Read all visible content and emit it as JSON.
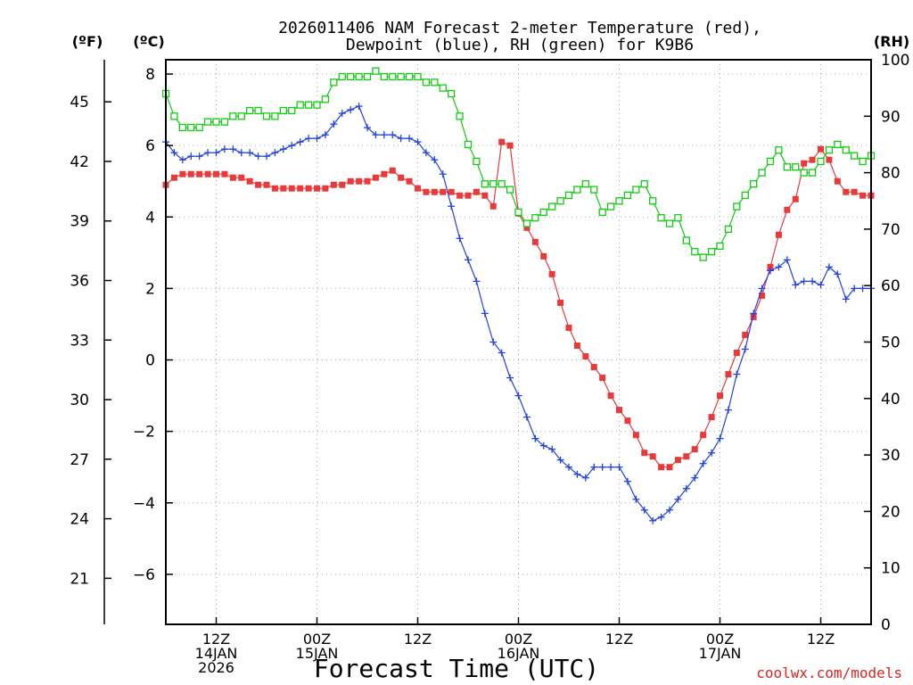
{
  "colors": {
    "temp": "#e83a3a",
    "dew": "#2244dd",
    "rh": "#11cc11",
    "grid": "#aaaaaa",
    "credit": "#dd2222"
  },
  "chart_data": {
    "type": "line",
    "title_line1": "2026011406 NAM Forecast 2-meter Temperature (red),",
    "title_line2": "Dewpoint (blue), RH (green) for K9B6",
    "xlabel": "Forecast Time (UTC)",
    "credit": "coolwx.com/models",
    "unit_f": "(ºF)",
    "unit_c": "(ºC)",
    "unit_rh": "(RH)",
    "x_unit": "forecast hour",
    "xlim": [
      0,
      84
    ],
    "ylim_c": [
      -7.4,
      8.4
    ],
    "ylim_rh": [
      0,
      100
    ],
    "yticks_c": [
      8,
      6,
      4,
      2,
      0,
      -2,
      -4,
      -6
    ],
    "yticks_c_labels": [
      "8",
      "6",
      "4",
      "2",
      "0",
      "−2",
      "−4",
      "−6"
    ],
    "yticks_f": [
      45,
      42,
      39,
      36,
      33,
      30,
      27,
      24,
      21
    ],
    "yticks_rh": [
      100,
      90,
      80,
      70,
      60,
      50,
      40,
      30,
      20,
      10,
      0
    ],
    "xticks": [
      {
        "hour": 6,
        "line1": "12Z",
        "line2": "14JAN",
        "line3": "2026"
      },
      {
        "hour": 18,
        "line1": "00Z",
        "line2": "15JAN",
        "line3": ""
      },
      {
        "hour": 30,
        "line1": "12Z",
        "line2": "",
        "line3": ""
      },
      {
        "hour": 42,
        "line1": "00Z",
        "line2": "16JAN",
        "line3": ""
      },
      {
        "hour": 54,
        "line1": "12Z",
        "line2": "",
        "line3": ""
      },
      {
        "hour": 66,
        "line1": "00Z",
        "line2": "17JAN",
        "line3": ""
      },
      {
        "hour": 78,
        "line1": "12Z",
        "line2": "",
        "line3": ""
      }
    ],
    "series": [
      {
        "name": "Temperature (°C)",
        "axis": "c",
        "marker": "filled-square",
        "x": [
          0,
          1,
          2,
          3,
          4,
          5,
          6,
          7,
          8,
          9,
          10,
          11,
          12,
          13,
          14,
          15,
          16,
          17,
          18,
          19,
          20,
          21,
          22,
          23,
          24,
          25,
          26,
          27,
          28,
          29,
          30,
          31,
          32,
          33,
          34,
          35,
          36,
          37,
          38,
          39,
          40,
          41,
          42,
          43,
          44,
          45,
          46,
          47,
          48,
          49,
          50,
          51,
          52,
          53,
          54,
          55,
          56,
          57,
          58,
          59,
          60,
          61,
          62,
          63,
          64,
          65,
          66,
          67,
          68,
          69,
          70,
          71,
          72,
          73,
          74,
          75,
          76,
          77,
          78,
          79,
          80,
          81,
          82,
          83,
          84
        ],
        "values": [
          4.9,
          5.1,
          5.2,
          5.2,
          5.2,
          5.2,
          5.2,
          5.2,
          5.1,
          5.1,
          5.0,
          4.9,
          4.9,
          4.8,
          4.8,
          4.8,
          4.8,
          4.8,
          4.8,
          4.8,
          4.9,
          4.9,
          5.0,
          5.0,
          5.0,
          5.1,
          5.2,
          5.3,
          5.1,
          5.0,
          4.8,
          4.7,
          4.7,
          4.7,
          4.7,
          4.6,
          4.6,
          4.7,
          4.6,
          4.3,
          6.1,
          6.0,
          4.1,
          3.7,
          3.3,
          2.9,
          2.4,
          1.6,
          0.9,
          0.4,
          0.1,
          -0.2,
          -0.5,
          -1.0,
          -1.4,
          -1.7,
          -2.1,
          -2.6,
          -2.7,
          -3.0,
          -3.0,
          -2.8,
          -2.7,
          -2.5,
          -2.1,
          -1.6,
          -1.0,
          -0.4,
          0.2,
          0.7,
          1.2,
          1.8,
          2.6,
          3.5,
          4.2,
          4.5,
          5.5,
          5.6,
          5.9,
          5.6,
          5.0,
          4.7,
          4.7,
          4.6,
          4.6
        ]
      },
      {
        "name": "Dewpoint (°C)",
        "axis": "c",
        "marker": "plus",
        "x": [
          0,
          1,
          2,
          3,
          4,
          5,
          6,
          7,
          8,
          9,
          10,
          11,
          12,
          13,
          14,
          15,
          16,
          17,
          18,
          19,
          20,
          21,
          22,
          23,
          24,
          25,
          26,
          27,
          28,
          29,
          30,
          31,
          32,
          33,
          34,
          35,
          36,
          37,
          38,
          39,
          40,
          41,
          42,
          43,
          44,
          45,
          46,
          47,
          48,
          49,
          50,
          51,
          52,
          53,
          54,
          55,
          56,
          57,
          58,
          59,
          60,
          61,
          62,
          63,
          64,
          65,
          66,
          67,
          68,
          69,
          70,
          71,
          72,
          73,
          74,
          75,
          76,
          77,
          78,
          79,
          80,
          81,
          82,
          83,
          84
        ],
        "values": [
          6.1,
          5.8,
          5.6,
          5.7,
          5.7,
          5.8,
          5.8,
          5.9,
          5.9,
          5.8,
          5.8,
          5.7,
          5.7,
          5.8,
          5.9,
          6.0,
          6.1,
          6.2,
          6.2,
          6.3,
          6.6,
          6.9,
          7.0,
          7.1,
          6.5,
          6.3,
          6.3,
          6.3,
          6.2,
          6.2,
          6.1,
          5.8,
          5.6,
          5.2,
          4.3,
          3.4,
          2.8,
          2.2,
          1.3,
          0.5,
          0.2,
          -0.5,
          -1.0,
          -1.6,
          -2.2,
          -2.4,
          -2.5,
          -2.8,
          -3.0,
          -3.2,
          -3.3,
          -3.0,
          -3.0,
          -3.0,
          -3.0,
          -3.4,
          -3.9,
          -4.2,
          -4.5,
          -4.4,
          -4.2,
          -3.9,
          -3.6,
          -3.3,
          -2.9,
          -2.6,
          -2.2,
          -1.4,
          -0.4,
          0.3,
          1.3,
          2.0,
          2.5,
          2.6,
          2.8,
          2.1,
          2.2,
          2.2,
          2.1,
          2.6,
          2.4,
          1.7,
          2.0,
          2.0,
          2.0
        ]
      },
      {
        "name": "RH (%)",
        "axis": "rh",
        "marker": "open-square",
        "x": [
          0,
          1,
          2,
          3,
          4,
          5,
          6,
          7,
          8,
          9,
          10,
          11,
          12,
          13,
          14,
          15,
          16,
          17,
          18,
          19,
          20,
          21,
          22,
          23,
          24,
          25,
          26,
          27,
          28,
          29,
          30,
          31,
          32,
          33,
          34,
          35,
          36,
          37,
          38,
          39,
          40,
          41,
          42,
          43,
          44,
          45,
          46,
          47,
          48,
          49,
          50,
          51,
          52,
          53,
          54,
          55,
          56,
          57,
          58,
          59,
          60,
          61,
          62,
          63,
          64,
          65,
          66,
          67,
          68,
          69,
          70,
          71,
          72,
          73,
          74,
          75,
          76,
          77,
          78,
          79,
          80,
          81,
          82,
          83,
          84
        ],
        "values": [
          94,
          90,
          88,
          88,
          88,
          89,
          89,
          89,
          90,
          90,
          91,
          91,
          90,
          90,
          91,
          91,
          92,
          92,
          92,
          93,
          96,
          97,
          97,
          97,
          97,
          98,
          97,
          97,
          97,
          97,
          97,
          96,
          96,
          95,
          94,
          90,
          85,
          82,
          78,
          78,
          78,
          77,
          73,
          71,
          72,
          73,
          74,
          75,
          76,
          77,
          78,
          77,
          73,
          74,
          75,
          76,
          77,
          78,
          75,
          72,
          71,
          72,
          68,
          66,
          65,
          66,
          67,
          70,
          74,
          76,
          78,
          80,
          82,
          84,
          81,
          81,
          80,
          80,
          82,
          84,
          85,
          84,
          83,
          82,
          83
        ]
      }
    ]
  }
}
